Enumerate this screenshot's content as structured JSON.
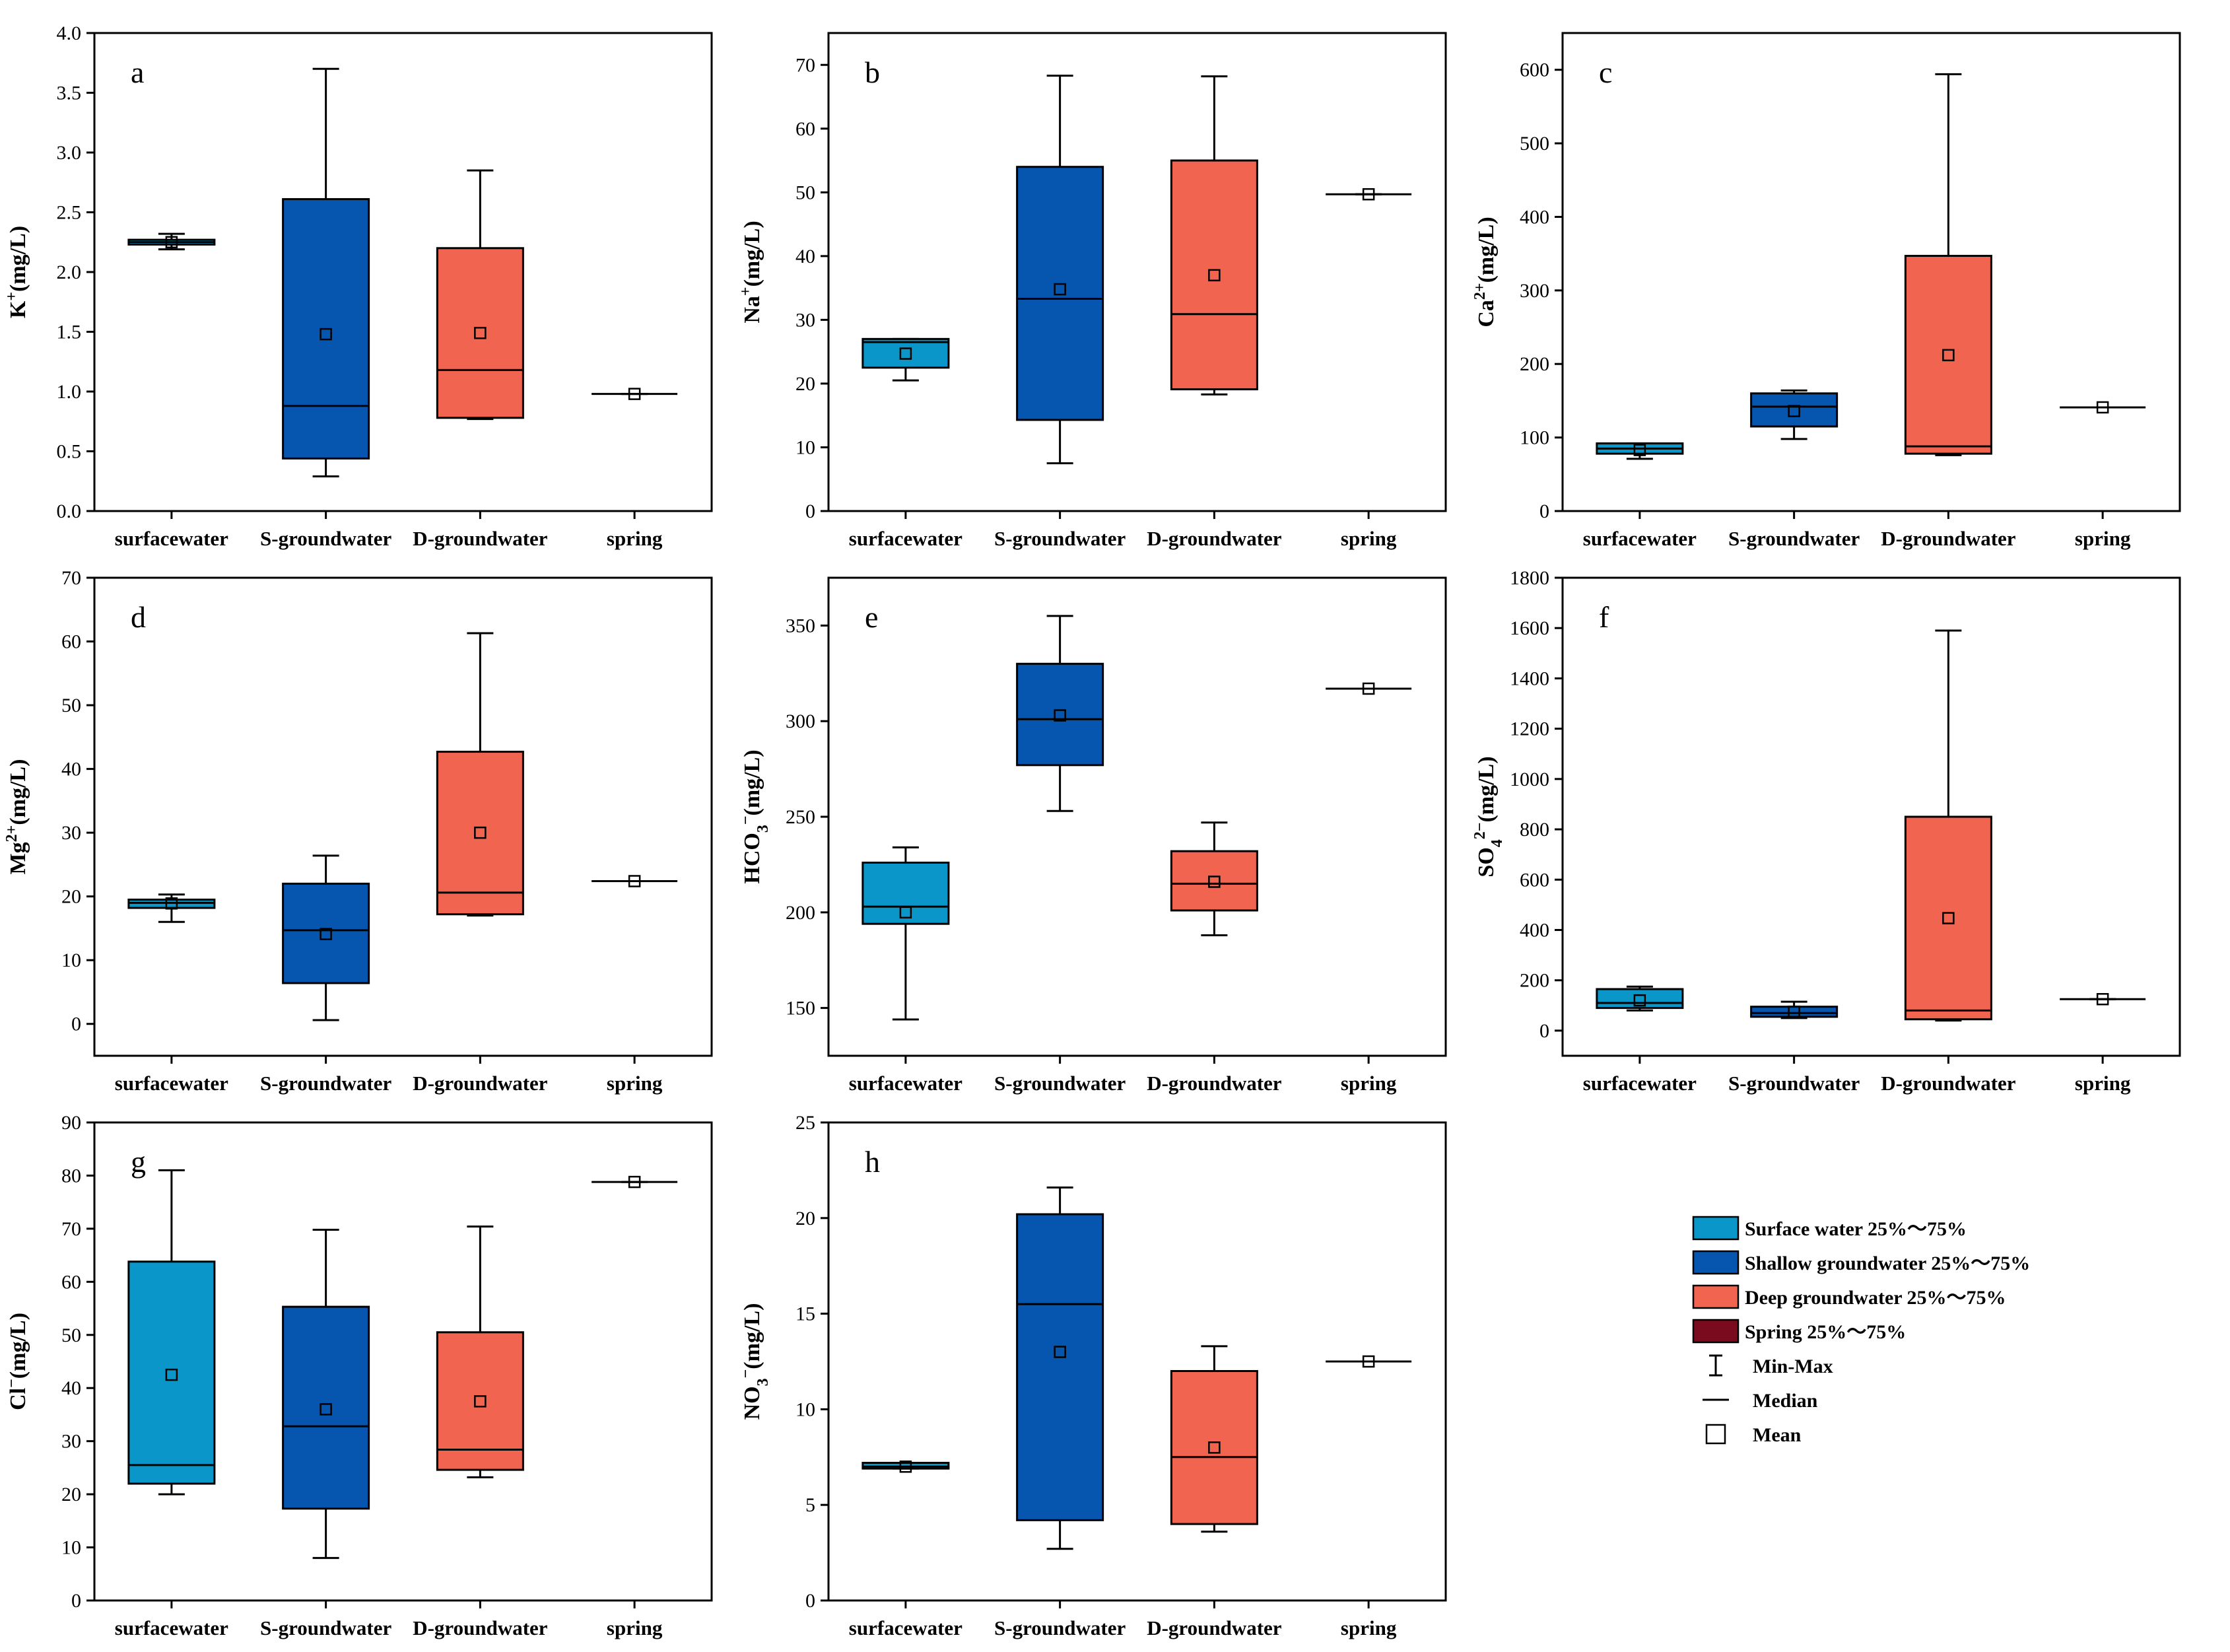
{
  "categories": [
    "surfacewater",
    "S-groundwater",
    "D-groundwater",
    "spring"
  ],
  "colors": {
    "surface": "#0a96c8",
    "shallow": "#0656b0",
    "deep": "#f06450",
    "spring": "#7a0a1e",
    "line": "#000000"
  },
  "legend": {
    "items": [
      {
        "label": "Surface water 25%～75%",
        "kind": "box",
        "color": "#0a96c8"
      },
      {
        "label": "Shallow groundwater 25%～75%",
        "kind": "box",
        "color": "#0656b0"
      },
      {
        "label": "Deep groundwater 25%～75%",
        "kind": "box",
        "color": "#f06450"
      },
      {
        "label": "Spring 25%～75%",
        "kind": "box",
        "color": "#7a0a1e"
      },
      {
        "label": "Min-Max",
        "kind": "whisker"
      },
      {
        "label": "Median",
        "kind": "median"
      },
      {
        "label": "Mean",
        "kind": "mean"
      }
    ]
  },
  "chart_data": [
    {
      "type": "box",
      "letter": "a",
      "ylabel": "K+(mg/L)",
      "ylabel_main": "K",
      "ylabel_sup": "+",
      "ylabel_sub": "",
      "ylabel_unit": "(mg/L)",
      "ylim": [
        0,
        4
      ],
      "yticks": [
        "0.0",
        "0.5",
        "1.0",
        "1.5",
        "2.0",
        "2.5",
        "3.0",
        "3.5",
        "4.0"
      ],
      "boxes": [
        {
          "category": "surfacewater",
          "min": 2.19,
          "q1": 2.23,
          "median": 2.25,
          "q3": 2.27,
          "max": 2.32,
          "mean": 2.25
        },
        {
          "category": "S-groundwater",
          "min": 0.29,
          "q1": 0.44,
          "median": 0.88,
          "q3": 2.61,
          "max": 3.7,
          "mean": 1.48
        },
        {
          "category": "D-groundwater",
          "min": 0.77,
          "q1": 0.78,
          "median": 1.18,
          "q3": 2.2,
          "max": 2.85,
          "mean": 1.49
        },
        {
          "category": "spring",
          "min": 0.98,
          "q1": 0.98,
          "median": 0.98,
          "q3": 0.98,
          "max": 0.98,
          "mean": 0.98
        }
      ]
    },
    {
      "type": "box",
      "letter": "b",
      "ylabel": "Na+(mg/L)",
      "ylabel_main": "Na",
      "ylabel_sup": "+",
      "ylabel_sub": "",
      "ylabel_unit": "(mg/L)",
      "ylim": [
        0,
        75
      ],
      "yticks": [
        "0",
        "10",
        "20",
        "30",
        "40",
        "50",
        "60",
        "70"
      ],
      "boxes": [
        {
          "category": "surfacewater",
          "min": 20.5,
          "q1": 22.5,
          "median": 26.5,
          "q3": 27.0,
          "max": 27.0,
          "mean": 24.7
        },
        {
          "category": "S-groundwater",
          "min": 7.5,
          "q1": 14.3,
          "median": 33.3,
          "q3": 54.0,
          "max": 68.3,
          "mean": 34.8
        },
        {
          "category": "D-groundwater",
          "min": 18.3,
          "q1": 19.1,
          "median": 30.9,
          "q3": 55.0,
          "max": 68.2,
          "mean": 37.0
        },
        {
          "category": "spring",
          "min": 49.7,
          "q1": 49.7,
          "median": 49.7,
          "q3": 49.7,
          "max": 49.7,
          "mean": 49.7
        }
      ]
    },
    {
      "type": "box",
      "letter": "c",
      "ylabel": "Ca2+(mg/L)",
      "ylabel_main": "Ca",
      "ylabel_sup": "2+",
      "ylabel_sub": "",
      "ylabel_unit": "(mg/L)",
      "ylim": [
        0,
        650
      ],
      "yticks": [
        "0",
        "100",
        "200",
        "300",
        "400",
        "500",
        "600"
      ],
      "boxes": [
        {
          "category": "surfacewater",
          "min": 71,
          "q1": 78,
          "median": 85,
          "q3": 92,
          "max": 92,
          "mean": 83
        },
        {
          "category": "S-groundwater",
          "min": 98,
          "q1": 115,
          "median": 142,
          "q3": 160,
          "max": 164,
          "mean": 136
        },
        {
          "category": "D-groundwater",
          "min": 76,
          "q1": 78,
          "median": 88,
          "q3": 347,
          "max": 594,
          "mean": 212
        },
        {
          "category": "spring",
          "min": 141,
          "q1": 141,
          "median": 141,
          "q3": 141,
          "max": 141,
          "mean": 141
        }
      ]
    },
    {
      "type": "box",
      "letter": "d",
      "ylabel": "Mg2+(mg/L)",
      "ylabel_main": "Mg",
      "ylabel_sup": "2+",
      "ylabel_sub": "",
      "ylabel_unit": "(mg/L)",
      "ylim": [
        -5,
        70
      ],
      "yticks": [
        "0",
        "10",
        "20",
        "30",
        "40",
        "50",
        "60",
        "70"
      ],
      "boxes": [
        {
          "category": "surfacewater",
          "min": 16.0,
          "q1": 18.2,
          "median": 19.0,
          "q3": 19.5,
          "max": 20.3,
          "mean": 18.9
        },
        {
          "category": "S-groundwater",
          "min": 0.6,
          "q1": 6.4,
          "median": 14.7,
          "q3": 22.0,
          "max": 26.4,
          "mean": 14.1
        },
        {
          "category": "D-groundwater",
          "min": 17.0,
          "q1": 17.2,
          "median": 20.6,
          "q3": 42.7,
          "max": 61.3,
          "mean": 30.0
        },
        {
          "category": "spring",
          "min": 22.4,
          "q1": 22.4,
          "median": 22.4,
          "q3": 22.4,
          "max": 22.4,
          "mean": 22.4
        }
      ]
    },
    {
      "type": "box",
      "letter": "e",
      "ylabel": "HCO3−(mg/L)",
      "ylabel_main": "HCO",
      "ylabel_sup": "−",
      "ylabel_sub": "3",
      "ylabel_unit": "(mg/L)",
      "ylim": [
        125,
        375
      ],
      "yticks": [
        "150",
        "200",
        "250",
        "300",
        "350"
      ],
      "boxes": [
        {
          "category": "surfacewater",
          "min": 144,
          "q1": 194,
          "median": 203,
          "q3": 226,
          "max": 234,
          "mean": 200
        },
        {
          "category": "S-groundwater",
          "min": 253,
          "q1": 277,
          "median": 301,
          "q3": 330,
          "max": 355,
          "mean": 303
        },
        {
          "category": "D-groundwater",
          "min": 188,
          "q1": 201,
          "median": 215,
          "q3": 232,
          "max": 247,
          "mean": 216
        },
        {
          "category": "spring",
          "min": 317,
          "q1": 317,
          "median": 317,
          "q3": 317,
          "max": 317,
          "mean": 317
        }
      ]
    },
    {
      "type": "box",
      "letter": "f",
      "ylabel": "SO42−(mg/L)",
      "ylabel_main": "SO",
      "ylabel_sup": "2−",
      "ylabel_sub": "4",
      "ylabel_unit": "(mg/L)",
      "ylim": [
        -100,
        1800
      ],
      "yticks": [
        "0",
        "200",
        "400",
        "600",
        "800",
        "1000",
        "1200",
        "1400",
        "1600",
        "1800"
      ],
      "boxes": [
        {
          "category": "surfacewater",
          "min": 80,
          "q1": 90,
          "median": 110,
          "q3": 165,
          "max": 175,
          "mean": 120
        },
        {
          "category": "S-groundwater",
          "min": 50,
          "q1": 55,
          "median": 70,
          "q3": 95,
          "max": 115,
          "mean": 75
        },
        {
          "category": "D-groundwater",
          "min": 40,
          "q1": 45,
          "median": 80,
          "q3": 850,
          "max": 1590,
          "mean": 447
        },
        {
          "category": "spring",
          "min": 125,
          "q1": 125,
          "median": 125,
          "q3": 125,
          "max": 125,
          "mean": 125
        }
      ]
    },
    {
      "type": "box",
      "letter": "g",
      "ylabel": "Cl−(mg/L)",
      "ylabel_main": "Cl",
      "ylabel_sup": "−",
      "ylabel_sub": "",
      "ylabel_unit": "(mg/L)",
      "ylim": [
        0,
        90
      ],
      "yticks": [
        "0",
        "10",
        "20",
        "30",
        "40",
        "50",
        "60",
        "70",
        "80",
        "90"
      ],
      "boxes": [
        {
          "category": "surfacewater",
          "min": 20.0,
          "q1": 22.0,
          "median": 25.5,
          "q3": 63.8,
          "max": 81.0,
          "mean": 42.5
        },
        {
          "category": "S-groundwater",
          "min": 8.0,
          "q1": 17.3,
          "median": 32.8,
          "q3": 55.3,
          "max": 69.8,
          "mean": 36.0
        },
        {
          "category": "D-groundwater",
          "min": 23.2,
          "q1": 24.6,
          "median": 28.4,
          "q3": 50.5,
          "max": 70.4,
          "mean": 37.5
        },
        {
          "category": "spring",
          "min": 78.8,
          "q1": 78.8,
          "median": 78.8,
          "q3": 78.8,
          "max": 78.8,
          "mean": 78.8
        }
      ]
    },
    {
      "type": "box",
      "letter": "h",
      "ylabel": "NO3−(mg/L)",
      "ylabel_main": "NO",
      "ylabel_sup": "−",
      "ylabel_sub": "3",
      "ylabel_unit": "(mg/L)",
      "ylim": [
        0,
        25
      ],
      "yticks": [
        "0",
        "5",
        "10",
        "15",
        "20",
        "25"
      ],
      "boxes": [
        {
          "category": "surfacewater",
          "min": 6.9,
          "q1": 6.9,
          "median": 7.0,
          "q3": 7.2,
          "max": 7.2,
          "mean": 7.0
        },
        {
          "category": "S-groundwater",
          "min": 2.7,
          "q1": 4.2,
          "median": 15.5,
          "q3": 20.2,
          "max": 21.6,
          "mean": 13.0
        },
        {
          "category": "D-groundwater",
          "min": 3.6,
          "q1": 4.0,
          "median": 7.5,
          "q3": 12.0,
          "max": 13.3,
          "mean": 8.0
        },
        {
          "category": "spring",
          "min": 12.5,
          "q1": 12.5,
          "median": 12.5,
          "q3": 12.5,
          "max": 12.5,
          "mean": 12.5
        }
      ]
    }
  ]
}
